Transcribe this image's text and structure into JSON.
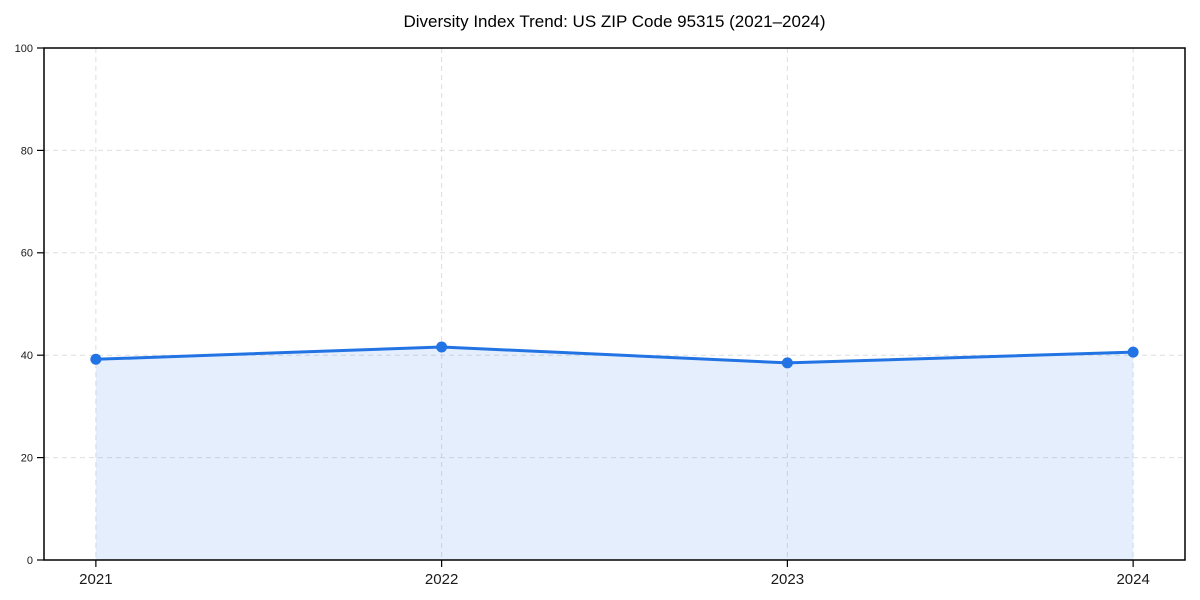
{
  "chart_data": {
    "type": "area",
    "title": "Diversity Index Trend: US ZIP Code 95315 (2021–2024)",
    "categories": [
      "2021",
      "2022",
      "2023",
      "2024"
    ],
    "series": [
      {
        "name": "Diversity Index",
        "values": [
          39.2,
          41.6,
          38.5,
          40.6
        ]
      }
    ],
    "xlabel": "",
    "ylabel": "",
    "ylim": [
      0,
      100
    ],
    "yticks": [
      0,
      20,
      40,
      60,
      80,
      100
    ],
    "grid": true,
    "grid_style": "dashed",
    "legend": false,
    "marker": "circle",
    "colors": {
      "line": "#2273e3",
      "marker": "#2273e3",
      "fill": "#2273e3",
      "fill_opacity": 0.12,
      "gridline": "#dedede",
      "spine": "#000000",
      "tick_label": "#1a1a1a",
      "background": "#ffffff"
    }
  }
}
